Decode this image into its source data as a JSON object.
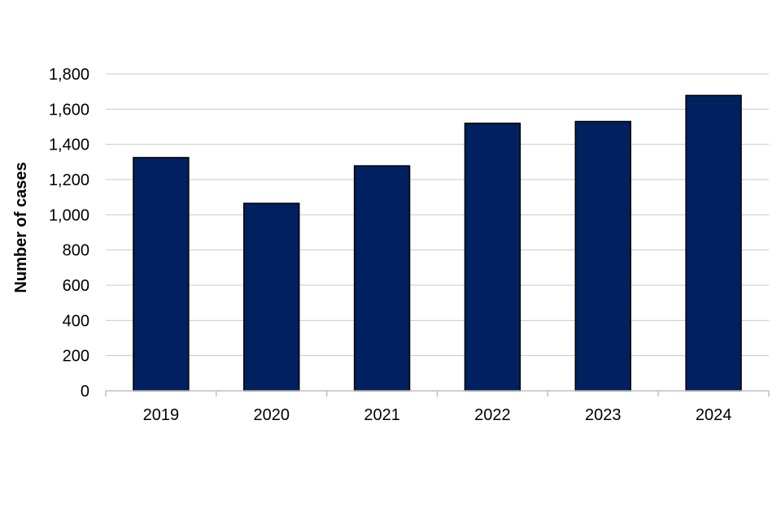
{
  "chart_data": {
    "type": "bar",
    "title": "",
    "xlabel": "",
    "ylabel": "Number of cases",
    "categories": [
      "2019",
      "2020",
      "2021",
      "2022",
      "2023",
      "2024"
    ],
    "values": [
      1325,
      1065,
      1278,
      1520,
      1530,
      1678
    ],
    "ylim": [
      0,
      1800
    ],
    "yticks": [
      0,
      200,
      400,
      600,
      800,
      1000,
      1200,
      1400,
      1600,
      1800
    ],
    "ytick_labels": [
      "0",
      "200",
      "400",
      "600",
      "800",
      "1,000",
      "1,200",
      "1,400",
      "1,600",
      "1,800"
    ],
    "grid": true,
    "legend": "none",
    "colors": {
      "bar_fill": "#002060",
      "bar_stroke": "#000000",
      "grid": "#c8c8c8",
      "axis": "#bfbfbf"
    }
  }
}
